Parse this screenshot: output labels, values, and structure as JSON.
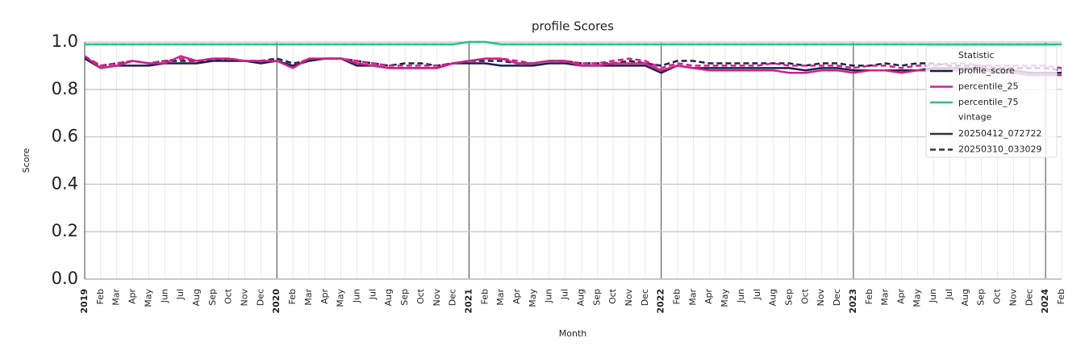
{
  "chart_data": {
    "type": "line",
    "title": "profile Scores",
    "x_label": "Month",
    "y_label": "Score",
    "categories": [
      "2019",
      "Feb",
      "Mar",
      "Apr",
      "May",
      "Jun",
      "Jul",
      "Aug",
      "Sep",
      "Oct",
      "Nov",
      "Dec",
      "2020",
      "Feb",
      "Mar",
      "Apr",
      "May",
      "Jun",
      "Jul",
      "Aug",
      "Sep",
      "Oct",
      "Nov",
      "Dec",
      "2021",
      "Feb",
      "Mar",
      "Apr",
      "May",
      "Jun",
      "Jul",
      "Aug",
      "Sep",
      "Oct",
      "Nov",
      "Dec",
      "2022",
      "Feb",
      "Mar",
      "Apr",
      "May",
      "Jun",
      "Jul",
      "Aug",
      "Sep",
      "Oct",
      "Nov",
      "Dec",
      "2023",
      "Feb",
      "Mar",
      "Apr",
      "May",
      "Jun",
      "Jul",
      "Aug",
      "Sep",
      "Oct",
      "Nov",
      "Dec",
      "2024",
      "Feb"
    ],
    "ylim": [
      0,
      1
    ],
    "yticks": [
      {
        "value": 0,
        "label": "0.0"
      },
      {
        "value": 0.2,
        "label": "0.2"
      },
      {
        "value": 0.4,
        "label": "0.4"
      },
      {
        "value": 0.6,
        "label": "0.6"
      },
      {
        "value": 0.8,
        "label": "0.8"
      },
      {
        "value": 1,
        "label": "1.0"
      }
    ],
    "grid": true,
    "legend_position": "upper right",
    "legend_statistic_title": "Statistic",
    "legend_vintage_title": "vintage",
    "vintages": [
      {
        "name": "20250412_072722",
        "dashed": false
      },
      {
        "name": "20250310_033029",
        "dashed": true
      }
    ],
    "series": [
      {
        "name": "profile_score",
        "color": "#1b1f4b",
        "vintages": [
          [
            0.93,
            0.89,
            0.9,
            0.9,
            0.9,
            0.91,
            0.91,
            0.91,
            0.92,
            0.92,
            0.92,
            0.91,
            0.92,
            0.9,
            0.92,
            0.93,
            0.93,
            0.9,
            0.9,
            0.89,
            0.89,
            0.89,
            0.89,
            0.91,
            0.91,
            0.91,
            0.9,
            0.9,
            0.9,
            0.91,
            0.91,
            0.9,
            0.9,
            0.9,
            0.9,
            0.9,
            0.87,
            0.9,
            0.89,
            0.89,
            0.89,
            0.89,
            0.89,
            0.89,
            0.89,
            0.88,
            0.89,
            0.89,
            0.88,
            0.88,
            0.88,
            0.88,
            0.88,
            0.89,
            0.89,
            0.89,
            0.89,
            0.88,
            0.88,
            0.87,
            0.87,
            0.87
          ],
          [
            0.93,
            0.9,
            0.91,
            0.92,
            0.91,
            0.92,
            0.92,
            0.92,
            0.92,
            0.93,
            0.92,
            0.92,
            0.93,
            0.91,
            0.92,
            0.93,
            0.93,
            0.92,
            0.91,
            0.9,
            0.91,
            0.91,
            0.9,
            0.91,
            0.92,
            0.92,
            0.92,
            0.91,
            0.91,
            0.92,
            0.92,
            0.91,
            0.91,
            0.91,
            0.92,
            0.91,
            0.9,
            0.92,
            0.92,
            0.91,
            0.91,
            0.91,
            0.91,
            0.91,
            0.91,
            0.9,
            0.91,
            0.91,
            0.9,
            0.9,
            0.91,
            0.9,
            0.91,
            0.91,
            0.9,
            0.9,
            0.9,
            0.89,
            0.89,
            0.89,
            0.89,
            0.88
          ]
        ]
      },
      {
        "name": "percentile_25",
        "color": "#d0208a",
        "vintages": [
          [
            0.94,
            0.89,
            0.9,
            0.92,
            0.91,
            0.91,
            0.94,
            0.92,
            0.93,
            0.93,
            0.92,
            0.92,
            0.92,
            0.89,
            0.93,
            0.93,
            0.93,
            0.91,
            0.9,
            0.89,
            0.89,
            0.89,
            0.89,
            0.91,
            0.92,
            0.93,
            0.93,
            0.91,
            0.91,
            0.92,
            0.92,
            0.9,
            0.9,
            0.91,
            0.91,
            0.91,
            0.88,
            0.9,
            0.89,
            0.88,
            0.88,
            0.88,
            0.88,
            0.88,
            0.87,
            0.87,
            0.88,
            0.88,
            0.87,
            0.88,
            0.88,
            0.87,
            0.88,
            0.88,
            0.88,
            0.88,
            0.88,
            0.87,
            0.87,
            0.86,
            0.86,
            0.86
          ],
          [
            0.94,
            0.9,
            0.91,
            0.92,
            0.91,
            0.92,
            0.93,
            0.92,
            0.93,
            0.93,
            0.92,
            0.92,
            0.92,
            0.9,
            0.93,
            0.93,
            0.93,
            0.92,
            0.91,
            0.9,
            0.9,
            0.9,
            0.9,
            0.91,
            0.92,
            0.93,
            0.93,
            0.92,
            0.91,
            0.92,
            0.92,
            0.91,
            0.91,
            0.92,
            0.93,
            0.92,
            0.89,
            0.91,
            0.9,
            0.9,
            0.9,
            0.9,
            0.9,
            0.91,
            0.9,
            0.9,
            0.9,
            0.9,
            0.89,
            0.9,
            0.9,
            0.89,
            0.9,
            0.9,
            0.91,
            0.91,
            0.9,
            0.9,
            0.9,
            0.9,
            0.9,
            0.89
          ]
        ]
      },
      {
        "name": "percentile_75",
        "color": "#2ec08e",
        "vintages": [
          [
            0.99,
            0.99,
            0.99,
            0.99,
            0.99,
            0.99,
            0.99,
            0.99,
            0.99,
            0.99,
            0.99,
            0.99,
            0.99,
            0.99,
            0.99,
            0.99,
            0.99,
            0.99,
            0.99,
            0.99,
            0.99,
            0.99,
            0.99,
            0.99,
            1.0,
            1.0,
            0.99,
            0.99,
            0.99,
            0.99,
            0.99,
            0.99,
            0.99,
            0.99,
            0.99,
            0.99,
            0.99,
            0.99,
            0.99,
            0.99,
            0.99,
            0.99,
            0.99,
            0.99,
            0.99,
            0.99,
            0.99,
            0.99,
            0.99,
            0.99,
            0.99,
            0.99,
            0.99,
            0.99,
            0.99,
            0.99,
            0.99,
            0.99,
            0.99,
            0.99,
            0.99,
            0.99
          ],
          [
            0.99,
            0.99,
            0.99,
            0.99,
            0.99,
            0.99,
            0.99,
            0.99,
            0.99,
            0.99,
            0.99,
            0.99,
            0.99,
            0.99,
            0.99,
            0.99,
            0.99,
            0.99,
            0.99,
            0.99,
            0.99,
            0.99,
            0.99,
            0.99,
            1.0,
            1.0,
            0.99,
            0.99,
            0.99,
            0.99,
            0.99,
            0.99,
            0.99,
            0.99,
            0.99,
            0.99,
            0.99,
            0.99,
            0.99,
            0.99,
            0.99,
            0.99,
            0.99,
            0.99,
            0.99,
            0.99,
            0.99,
            0.99,
            0.99,
            0.99,
            0.99,
            0.99,
            0.99,
            0.99,
            0.99,
            0.99,
            0.99,
            0.99,
            0.99,
            0.99,
            0.99,
            0.99
          ]
        ]
      }
    ]
  }
}
